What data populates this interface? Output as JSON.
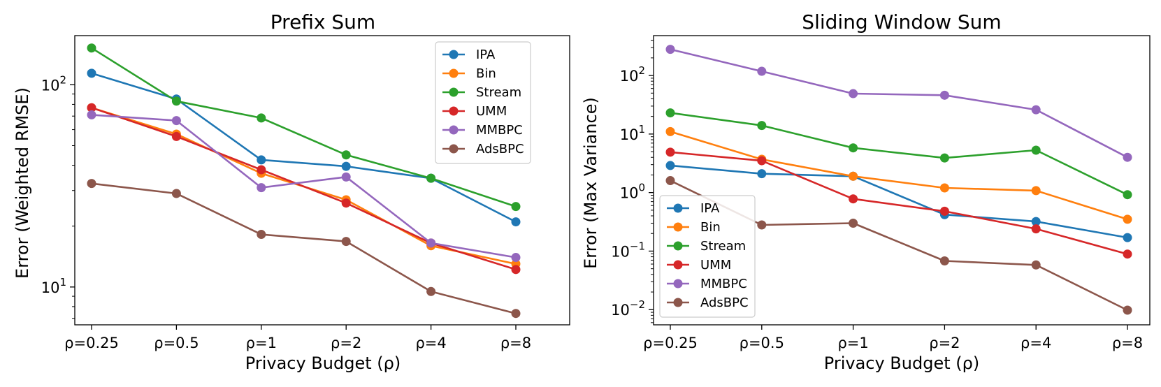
{
  "chart_data": [
    {
      "type": "line",
      "title": "Prefix Sum",
      "xlabel": "Privacy Budget (ρ)",
      "ylabel": "Error (Weighted RMSE)",
      "yscale": "log",
      "ylim": [
        6.5,
        175
      ],
      "yticks": [
        {
          "value": 10,
          "base": "10",
          "exp": "1"
        },
        {
          "value": 100,
          "base": "10",
          "exp": "2"
        }
      ],
      "categories": [
        "ρ=0.25",
        "ρ=0.5",
        "ρ=1",
        "ρ=2",
        "ρ=4",
        "ρ=8"
      ],
      "legend_position": "upper right",
      "series": [
        {
          "name": "IPA",
          "color": "#1f77b4",
          "values": [
            114,
            85,
            42.5,
            39.5,
            34.5,
            21
          ]
        },
        {
          "name": "Bin",
          "color": "#ff7f0e",
          "values": [
            77,
            57,
            36.5,
            27,
            16,
            13
          ]
        },
        {
          "name": "Stream",
          "color": "#2ca02c",
          "values": [
            152,
            83,
            68.5,
            45,
            34.5,
            25
          ]
        },
        {
          "name": "UMM",
          "color": "#d62728",
          "values": [
            77,
            55.5,
            38,
            26,
            16.5,
            12.2
          ]
        },
        {
          "name": "MMBPC",
          "color": "#9467bd",
          "values": [
            71,
            66.5,
            31,
            35,
            16.5,
            14
          ]
        },
        {
          "name": "AdsBPC",
          "color": "#8c564b",
          "values": [
            32.5,
            29,
            18.2,
            16.8,
            9.5,
            7.4
          ]
        }
      ]
    },
    {
      "type": "line",
      "title": "Sliding Window Sum",
      "xlabel": "Privacy Budget (ρ)",
      "ylabel": "Error (Max Variance)",
      "yscale": "log",
      "ylim": [
        0.0055,
        480
      ],
      "yticks": [
        {
          "value": 0.01,
          "base": "10",
          "exp": "−2"
        },
        {
          "value": 0.1,
          "base": "10",
          "exp": "−1"
        },
        {
          "value": 1,
          "base": "10",
          "exp": "0"
        },
        {
          "value": 10,
          "base": "10",
          "exp": "1"
        },
        {
          "value": 100,
          "base": "10",
          "exp": "2"
        }
      ],
      "categories": [
        "ρ=0.25",
        "ρ=0.5",
        "ρ=1",
        "ρ=2",
        "ρ=4",
        "ρ=8"
      ],
      "legend_position": "lower left",
      "series": [
        {
          "name": "IPA",
          "color": "#1f77b4",
          "values": [
            2.9,
            2.1,
            1.9,
            0.42,
            0.32,
            0.17
          ]
        },
        {
          "name": "Bin",
          "color": "#ff7f0e",
          "values": [
            11,
            3.7,
            1.9,
            1.2,
            1.08,
            0.35
          ]
        },
        {
          "name": "Stream",
          "color": "#2ca02c",
          "values": [
            23,
            14,
            5.8,
            3.9,
            5.3,
            0.92
          ]
        },
        {
          "name": "UMM",
          "color": "#d62728",
          "values": [
            4.9,
            3.5,
            0.78,
            0.48,
            0.24,
            0.089
          ]
        },
        {
          "name": "MMBPC",
          "color": "#9467bd",
          "values": [
            280,
            118,
            49,
            46,
            26,
            4
          ]
        },
        {
          "name": "AdsBPC",
          "color": "#8c564b",
          "values": [
            1.6,
            0.28,
            0.3,
            0.068,
            0.058,
            0.0098
          ]
        }
      ]
    }
  ]
}
